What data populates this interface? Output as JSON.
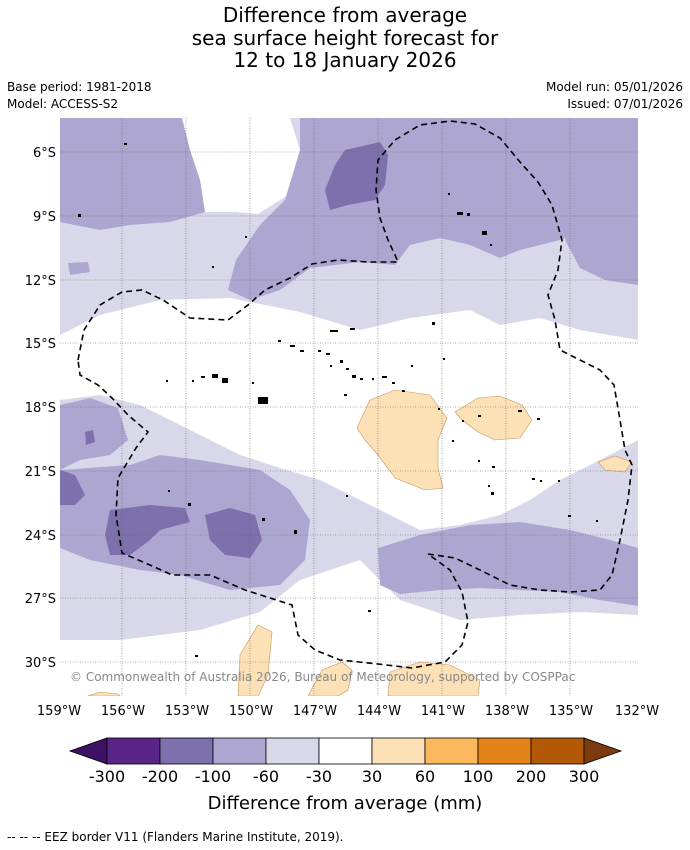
{
  "title": {
    "line1": "Difference from average",
    "line2": "sea surface height forecast for",
    "line3": "12 to 18 January 2026"
  },
  "meta": {
    "base_period": "Base period: 1981-2018",
    "model": "Model: ACCESS-S2",
    "model_run": "Model run: 05/01/2026",
    "issued": "Issued: 07/01/2026"
  },
  "map": {
    "lat_labels": [
      "6°S",
      "9°S",
      "12°S",
      "15°S",
      "18°S",
      "21°S",
      "24°S",
      "27°S",
      "30°S"
    ],
    "lon_labels": [
      "159°W",
      "156°W",
      "153°W",
      "150°W",
      "147°W",
      "144°W",
      "141°W",
      "138°W",
      "135°W",
      "132°W"
    ],
    "copyright": "© Commonwealth of Australia 2026, Bureau of Meteorology, supported by COSPPac"
  },
  "colorbar": {
    "colors": [
      "#3f1165",
      "#5a2588",
      "#7e6fad",
      "#ada6d0",
      "#d8d8ea",
      "#ffffff",
      "#fde1b6",
      "#fbb85e",
      "#e38419",
      "#b35807",
      "#7c3b0e"
    ],
    "tick_labels": [
      "-300",
      "-200",
      "-100",
      "-60",
      "-30",
      "30",
      "60",
      "100",
      "200",
      "300"
    ],
    "label": "Difference from average (mm)"
  },
  "footnote": "--  --  -- EEZ border V11 (Flanders Marine Institute, 2019)."
}
